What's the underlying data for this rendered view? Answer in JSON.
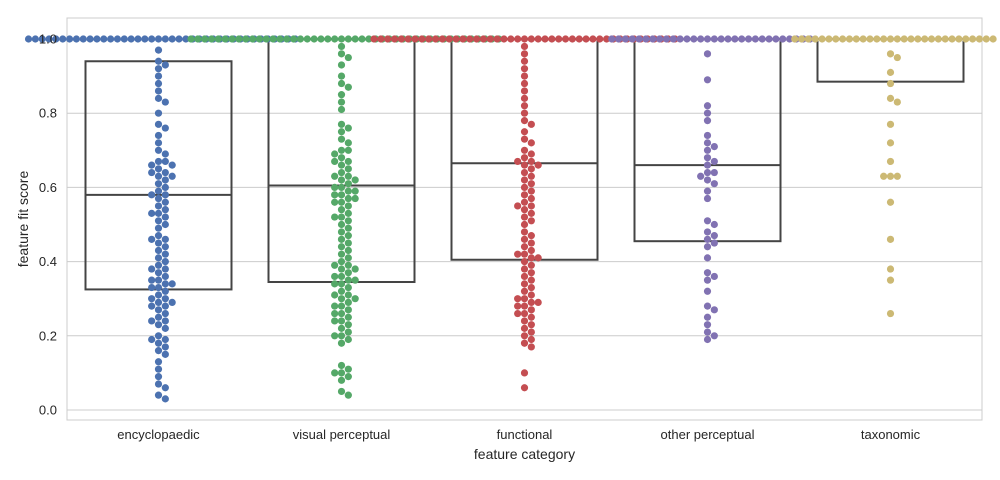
{
  "chart_data": {
    "type": "swarm+box",
    "xlabel": "feature category",
    "ylabel": "feature fit score",
    "ylim": [
      0.0,
      1.0
    ],
    "yticks": [
      0.0,
      0.2,
      0.4,
      0.6,
      0.8,
      1.0
    ],
    "ytick_labels": [
      "0.0",
      "0.2",
      "0.4",
      "0.6",
      "0.8",
      "1.0"
    ],
    "grid": true,
    "categories": [
      "encyclopaedic",
      "visual perceptual",
      "functional",
      "other perceptual",
      "taxonomic"
    ],
    "colors": [
      "#4c72b0",
      "#55a868",
      "#c44e52",
      "#8172b2",
      "#ccb974"
    ],
    "box_stats": [
      {
        "q1": 0.325,
        "median": 0.58,
        "q3": 0.94
      },
      {
        "q1": 0.345,
        "median": 0.605,
        "q3": 1.0
      },
      {
        "q1": 0.405,
        "median": 0.665,
        "q3": 1.0
      },
      {
        "q1": 0.455,
        "median": 0.66,
        "q3": 1.0
      },
      {
        "q1": 0.885,
        "median": 1.0,
        "q3": 1.0
      }
    ],
    "points": [
      {
        "y": [
          1.0,
          1.0,
          1.0,
          1.0,
          1.0,
          1.0,
          1.0,
          1.0,
          1.0,
          1.0,
          1.0,
          1.0,
          1.0,
          1.0,
          1.0,
          1.0,
          1.0,
          1.0,
          1.0,
          1.0,
          1.0,
          1.0,
          1.0,
          1.0,
          1.0,
          1.0,
          1.0,
          1.0,
          1.0,
          1.0,
          1.0,
          1.0,
          1.0,
          1.0,
          1.0,
          1.0,
          1.0,
          1.0,
          1.0,
          1.0,
          0.97,
          0.94,
          0.93,
          0.92,
          0.9,
          0.88,
          0.86,
          0.84,
          0.83,
          0.8,
          0.77,
          0.76,
          0.74,
          0.72,
          0.7,
          0.69,
          0.67,
          0.67,
          0.66,
          0.66,
          0.65,
          0.64,
          0.64,
          0.63,
          0.63,
          0.62,
          0.61,
          0.6,
          0.59,
          0.58,
          0.58,
          0.57,
          0.56,
          0.55,
          0.54,
          0.53,
          0.53,
          0.52,
          0.51,
          0.5,
          0.49,
          0.47,
          0.46,
          0.46,
          0.45,
          0.44,
          0.43,
          0.42,
          0.41,
          0.4,
          0.39,
          0.38,
          0.38,
          0.37,
          0.36,
          0.35,
          0.35,
          0.34,
          0.34,
          0.33,
          0.33,
          0.32,
          0.31,
          0.3,
          0.3,
          0.29,
          0.29,
          0.28,
          0.28,
          0.27,
          0.26,
          0.25,
          0.24,
          0.24,
          0.23,
          0.22,
          0.2,
          0.19,
          0.19,
          0.18,
          0.17,
          0.16,
          0.15,
          0.13,
          0.11,
          0.09,
          0.07,
          0.06,
          0.04,
          0.03
        ]
      },
      {
        "y": [
          1.0,
          1.0,
          1.0,
          1.0,
          1.0,
          1.0,
          1.0,
          1.0,
          1.0,
          1.0,
          1.0,
          1.0,
          1.0,
          1.0,
          1.0,
          1.0,
          1.0,
          1.0,
          1.0,
          1.0,
          1.0,
          1.0,
          1.0,
          1.0,
          1.0,
          1.0,
          1.0,
          1.0,
          1.0,
          1.0,
          1.0,
          1.0,
          1.0,
          1.0,
          1.0,
          1.0,
          1.0,
          1.0,
          1.0,
          1.0,
          1.0,
          1.0,
          1.0,
          1.0,
          1.0,
          1.0,
          0.98,
          0.96,
          0.95,
          0.93,
          0.9,
          0.88,
          0.87,
          0.85,
          0.83,
          0.81,
          0.77,
          0.76,
          0.75,
          0.73,
          0.72,
          0.7,
          0.7,
          0.69,
          0.68,
          0.67,
          0.67,
          0.66,
          0.65,
          0.64,
          0.63,
          0.63,
          0.62,
          0.62,
          0.61,
          0.6,
          0.6,
          0.59,
          0.59,
          0.58,
          0.58,
          0.57,
          0.57,
          0.56,
          0.56,
          0.55,
          0.54,
          0.53,
          0.52,
          0.52,
          0.51,
          0.5,
          0.49,
          0.48,
          0.47,
          0.46,
          0.45,
          0.44,
          0.43,
          0.42,
          0.41,
          0.4,
          0.39,
          0.39,
          0.38,
          0.38,
          0.37,
          0.36,
          0.36,
          0.35,
          0.35,
          0.34,
          0.34,
          0.33,
          0.32,
          0.31,
          0.31,
          0.3,
          0.3,
          0.29,
          0.28,
          0.28,
          0.27,
          0.26,
          0.26,
          0.25,
          0.24,
          0.24,
          0.23,
          0.22,
          0.21,
          0.2,
          0.2,
          0.19,
          0.18,
          0.12,
          0.11,
          0.1,
          0.1,
          0.09,
          0.08,
          0.05,
          0.04
        ]
      },
      {
        "y": [
          1.0,
          1.0,
          1.0,
          1.0,
          1.0,
          1.0,
          1.0,
          1.0,
          1.0,
          1.0,
          1.0,
          1.0,
          1.0,
          1.0,
          1.0,
          1.0,
          1.0,
          1.0,
          1.0,
          1.0,
          1.0,
          1.0,
          1.0,
          1.0,
          1.0,
          1.0,
          1.0,
          1.0,
          1.0,
          1.0,
          1.0,
          1.0,
          1.0,
          1.0,
          1.0,
          1.0,
          1.0,
          1.0,
          1.0,
          1.0,
          1.0,
          1.0,
          1.0,
          1.0,
          1.0,
          0.98,
          0.96,
          0.94,
          0.92,
          0.9,
          0.88,
          0.86,
          0.84,
          0.82,
          0.8,
          0.78,
          0.77,
          0.75,
          0.73,
          0.72,
          0.7,
          0.69,
          0.68,
          0.67,
          0.67,
          0.66,
          0.66,
          0.65,
          0.64,
          0.63,
          0.62,
          0.61,
          0.6,
          0.59,
          0.58,
          0.57,
          0.56,
          0.55,
          0.55,
          0.54,
          0.53,
          0.52,
          0.51,
          0.5,
          0.48,
          0.47,
          0.46,
          0.45,
          0.44,
          0.43,
          0.42,
          0.42,
          0.41,
          0.41,
          0.4,
          0.39,
          0.38,
          0.37,
          0.36,
          0.35,
          0.34,
          0.33,
          0.32,
          0.31,
          0.3,
          0.3,
          0.29,
          0.29,
          0.28,
          0.28,
          0.27,
          0.26,
          0.26,
          0.25,
          0.24,
          0.23,
          0.22,
          0.21,
          0.2,
          0.19,
          0.18,
          0.17,
          0.1,
          0.06
        ]
      },
      {
        "y": [
          1.0,
          1.0,
          1.0,
          1.0,
          1.0,
          1.0,
          1.0,
          1.0,
          1.0,
          1.0,
          1.0,
          1.0,
          1.0,
          1.0,
          1.0,
          1.0,
          1.0,
          1.0,
          1.0,
          1.0,
          1.0,
          1.0,
          1.0,
          1.0,
          1.0,
          1.0,
          1.0,
          1.0,
          1.0,
          1.0,
          0.96,
          0.89,
          0.82,
          0.8,
          0.78,
          0.74,
          0.72,
          0.71,
          0.7,
          0.68,
          0.67,
          0.66,
          0.64,
          0.64,
          0.63,
          0.62,
          0.61,
          0.59,
          0.57,
          0.51,
          0.5,
          0.48,
          0.47,
          0.46,
          0.45,
          0.44,
          0.41,
          0.37,
          0.36,
          0.35,
          0.32,
          0.28,
          0.27,
          0.25,
          0.23,
          0.21,
          0.2,
          0.19
        ]
      },
      {
        "y": [
          1.0,
          1.0,
          1.0,
          1.0,
          1.0,
          1.0,
          1.0,
          1.0,
          1.0,
          1.0,
          1.0,
          1.0,
          1.0,
          1.0,
          1.0,
          1.0,
          1.0,
          1.0,
          1.0,
          1.0,
          1.0,
          1.0,
          1.0,
          1.0,
          1.0,
          1.0,
          1.0,
          1.0,
          1.0,
          1.0,
          0.96,
          0.95,
          0.91,
          0.88,
          0.84,
          0.83,
          0.77,
          0.72,
          0.67,
          0.63,
          0.63,
          0.63,
          0.56,
          0.46,
          0.38,
          0.35,
          0.26
        ]
      }
    ]
  }
}
